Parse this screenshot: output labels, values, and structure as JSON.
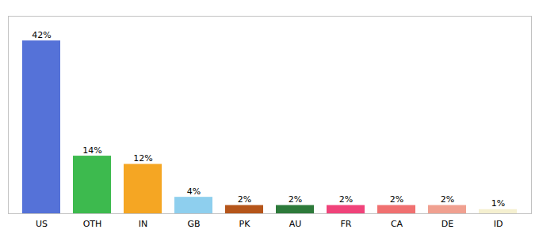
{
  "chart_data": {
    "type": "bar",
    "categories": [
      "US",
      "OTH",
      "IN",
      "GB",
      "PK",
      "AU",
      "FR",
      "CA",
      "DE",
      "ID"
    ],
    "values": [
      42,
      14,
      12,
      4,
      2,
      2,
      2,
      2,
      2,
      1
    ],
    "value_labels": [
      "42%",
      "14%",
      "12%",
      "4%",
      "2%",
      "2%",
      "2%",
      "2%",
      "2%",
      "1%"
    ],
    "colors": [
      "#5572d8",
      "#3dba4e",
      "#f5a623",
      "#8ecfee",
      "#b5551a",
      "#2d7a3a",
      "#f0437a",
      "#f07070",
      "#f0a090",
      "#f5f0d0"
    ],
    "ylim": [
      0,
      48
    ],
    "data_labels": true,
    "tick_labels": "x",
    "grid": false
  }
}
